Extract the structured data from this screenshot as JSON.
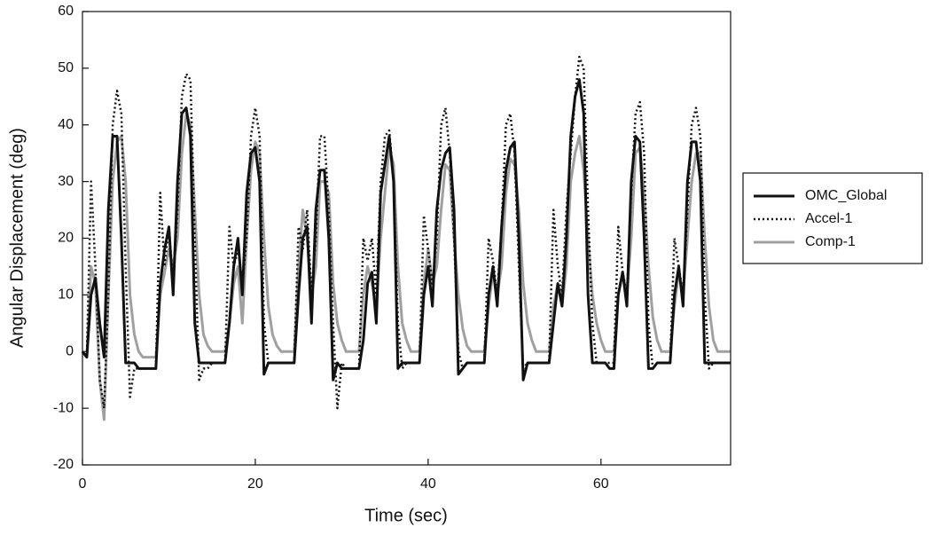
{
  "chart_data": {
    "type": "line",
    "x_label": "Time (sec)",
    "y_label": "Angular Displacement (deg)",
    "x": [
      0,
      0.5,
      1,
      1.5,
      2,
      2.5,
      3,
      3.5,
      4,
      4.5,
      5,
      5.5,
      6,
      6.5,
      7,
      7.5,
      8,
      8.5,
      9,
      9.5,
      10,
      10.5,
      11,
      11.5,
      12,
      12.5,
      13,
      13.5,
      14,
      14.5,
      15,
      15.5,
      16,
      16.5,
      17,
      17.5,
      18,
      18.5,
      19,
      19.5,
      20,
      20.5,
      21,
      21.5,
      22,
      22.5,
      23,
      23.5,
      24,
      24.5,
      25,
      25.5,
      26,
      26.5,
      27,
      27.5,
      28,
      28.5,
      29,
      29.5,
      30,
      30.5,
      31,
      31.5,
      32,
      32.5,
      33,
      33.5,
      34,
      34.5,
      35,
      35.5,
      36,
      36.5,
      37,
      37.5,
      38,
      38.5,
      39,
      39.5,
      40,
      40.5,
      41,
      41.5,
      42,
      42.5,
      43,
      43.5,
      44,
      44.5,
      45,
      45.5,
      46,
      46.5,
      47,
      47.5,
      48,
      48.5,
      49,
      49.5,
      50,
      50.5,
      51,
      51.5,
      52,
      52.5,
      53,
      53.5,
      54,
      54.5,
      55,
      55.5,
      56,
      56.5,
      57,
      57.5,
      58,
      58.5,
      59,
      59.5,
      60,
      60.5,
      61,
      61.5,
      62,
      62.5,
      63,
      63.5,
      64,
      64.5,
      65,
      65.5,
      66,
      66.5,
      67,
      67.5,
      68,
      68.5,
      69,
      69.5,
      70,
      70.5,
      71,
      71.5,
      72,
      72.5,
      73,
      73.5,
      74,
      74.5,
      75
    ],
    "series": [
      {
        "name": "OMC_Global",
        "color": "#111111",
        "style": "solid",
        "values": [
          0,
          -1,
          10,
          13,
          5,
          -1,
          25,
          38,
          38,
          20,
          -2,
          -2,
          -2,
          -3,
          -3,
          -3,
          -3,
          -3,
          12,
          18,
          22,
          10,
          30,
          42,
          43,
          38,
          5,
          -2,
          -2,
          -2,
          -2,
          -2,
          -2,
          -2,
          5,
          15,
          20,
          10,
          28,
          35,
          36,
          30,
          -4,
          -2,
          -2,
          -2,
          -2,
          -2,
          -2,
          -2,
          10,
          20,
          22,
          5,
          25,
          32,
          32,
          20,
          -5,
          -2,
          -3,
          -3,
          -3,
          -3,
          -3,
          2,
          12,
          14,
          5,
          28,
          33,
          38,
          30,
          -3,
          -2,
          -2,
          -2,
          -2,
          -2,
          10,
          15,
          8,
          25,
          32,
          35,
          36,
          25,
          -4,
          -3,
          -2,
          -2,
          -2,
          -2,
          -2,
          10,
          15,
          8,
          22,
          32,
          36,
          37,
          20,
          -5,
          -2,
          -2,
          -2,
          -2,
          -2,
          -2,
          5,
          12,
          8,
          20,
          38,
          45,
          48,
          42,
          10,
          -2,
          -2,
          -2,
          -2,
          -3,
          -3,
          10,
          14,
          8,
          30,
          38,
          37,
          20,
          -3,
          -3,
          -2,
          -2,
          -2,
          -2,
          10,
          15,
          8,
          30,
          37,
          37,
          30,
          -2,
          -2,
          -2,
          -2,
          -2,
          -2,
          -2
        ]
      },
      {
        "name": "Accel-1",
        "color": "#111111",
        "style": "dotted",
        "values": [
          0,
          -1,
          30,
          15,
          -5,
          -10,
          10,
          40,
          46,
          42,
          15,
          -8,
          -3,
          -3,
          -3,
          -3,
          -3,
          -3,
          28,
          15,
          22,
          12,
          25,
          45,
          49,
          48,
          20,
          -5,
          -3,
          -3,
          -2,
          -2,
          -2,
          -2,
          22,
          15,
          18,
          12,
          20,
          38,
          43,
          38,
          5,
          -2,
          -2,
          -2,
          -2,
          -2,
          -2,
          -2,
          22,
          18,
          25,
          10,
          20,
          38,
          38,
          25,
          5,
          -10,
          -2,
          -3,
          -3,
          -3,
          -3,
          20,
          16,
          20,
          10,
          30,
          38,
          39,
          30,
          5,
          -3,
          -2,
          -2,
          -2,
          -2,
          24,
          18,
          12,
          20,
          40,
          43,
          35,
          20,
          0,
          -3,
          -2,
          -2,
          -2,
          -2,
          -2,
          20,
          16,
          10,
          22,
          40,
          42,
          35,
          15,
          -3,
          -2,
          -2,
          -2,
          -2,
          -2,
          -2,
          25,
          15,
          10,
          25,
          35,
          45,
          52,
          50,
          25,
          5,
          -2,
          -2,
          -2,
          -2,
          -2,
          22,
          14,
          10,
          28,
          42,
          44,
          35,
          5,
          -3,
          -2,
          -2,
          -2,
          -2,
          20,
          15,
          10,
          25,
          40,
          43,
          38,
          10,
          -3,
          -2,
          -2,
          -2,
          -2,
          -2
        ]
      },
      {
        "name": "Comp-1",
        "color": "#a0a0a0",
        "style": "solid",
        "values": [
          0,
          -1,
          15,
          12,
          -5,
          -12,
          10,
          30,
          37,
          38,
          30,
          10,
          3,
          0,
          -1,
          -1,
          -1,
          -1,
          10,
          14,
          18,
          15,
          20,
          35,
          42,
          40,
          25,
          10,
          3,
          1,
          0,
          0,
          0,
          0,
          5,
          12,
          15,
          5,
          20,
          32,
          37,
          35,
          20,
          8,
          3,
          1,
          0,
          0,
          0,
          0,
          15,
          25,
          20,
          10,
          15,
          30,
          30,
          28,
          12,
          5,
          2,
          0,
          0,
          0,
          0,
          10,
          15,
          12,
          8,
          20,
          28,
          36,
          33,
          15,
          5,
          2,
          0,
          0,
          0,
          12,
          18,
          12,
          15,
          25,
          33,
          32,
          20,
          10,
          4,
          1,
          0,
          0,
          0,
          0,
          8,
          14,
          10,
          15,
          28,
          34,
          33,
          25,
          12,
          5,
          2,
          0,
          0,
          0,
          0,
          8,
          12,
          8,
          15,
          30,
          35,
          38,
          32,
          20,
          10,
          5,
          2,
          0,
          0,
          0,
          10,
          14,
          10,
          20,
          35,
          36,
          28,
          15,
          6,
          2,
          0,
          0,
          0,
          8,
          14,
          10,
          20,
          30,
          35,
          35,
          20,
          8,
          2,
          0,
          0,
          0,
          0
        ]
      }
    ],
    "xlim": [
      0,
      75
    ],
    "ylim": [
      -20,
      60
    ],
    "xticks": [
      0,
      20,
      40,
      60
    ],
    "yticks": [
      -20,
      -10,
      0,
      10,
      20,
      30,
      40,
      50,
      60
    ],
    "legend": "right"
  }
}
